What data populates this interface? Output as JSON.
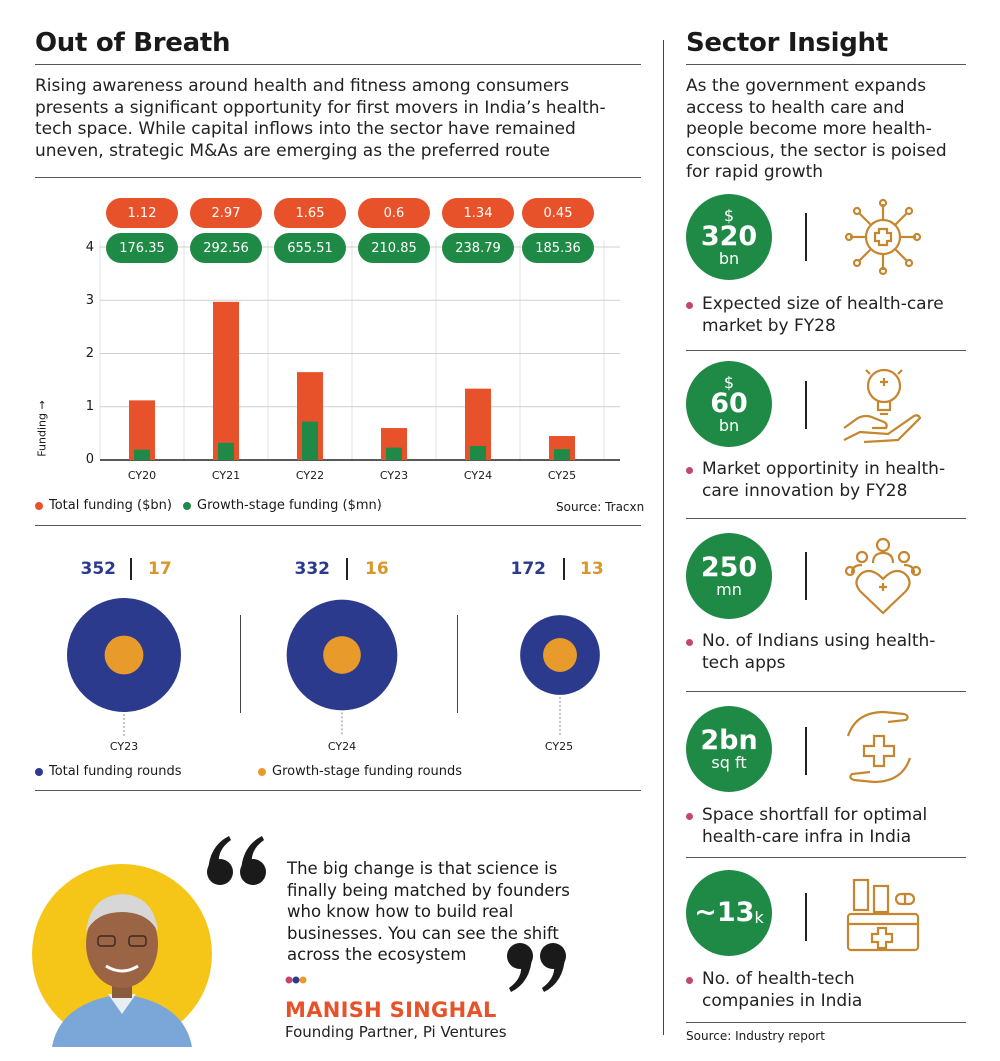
{
  "left": {
    "title": "Out of Breath",
    "intro": [
      "Rising awareness around health and fitness among consumers",
      "presents a significant opportunity for first movers in India’s health-",
      "tech space. While capital inflows into the sector have remained",
      "uneven, strategic M&As are emerging as the preferred route"
    ],
    "legend_total": "Total funding ($bn)",
    "legend_growth": "Growth-stage funding ($mn)",
    "source": "Source: Tracxn",
    "rounds_legend_total": "Total funding rounds",
    "rounds_legend_growth": "Growth-stage funding rounds"
  },
  "chart_data": [
    {
      "type": "bar",
      "categories": [
        "CY20",
        "CY21",
        "CY22",
        "CY23",
        "CY24",
        "CY25"
      ],
      "series": [
        {
          "name": "Total funding ($bn)",
          "values": [
            1.12,
            2.97,
            1.65,
            0.6,
            1.34,
            0.45
          ],
          "labels": [
            "1.12",
            "2.97",
            "1.65",
            "0.6",
            "1.34",
            "0.45"
          ],
          "color": "#e8522a"
        },
        {
          "name": "Growth-stage funding ($mn)",
          "values": [
            176.35,
            292.56,
            655.51,
            210.85,
            238.79,
            185.36
          ],
          "labels": [
            "176.35",
            "292.56",
            "655.51",
            "210.85",
            "238.79",
            "185.36"
          ],
          "color": "#1f8a46"
        }
      ],
      "ylabel": "Funding →",
      "yticks": [
        "0",
        "1",
        "2",
        "3",
        "4"
      ],
      "ylim": [
        0,
        4
      ],
      "grid": true
    },
    {
      "type": "pie",
      "categories": [
        "CY23",
        "CY24",
        "CY25"
      ],
      "series": [
        {
          "name": "Total funding rounds",
          "values": [
            352,
            332,
            172
          ],
          "color": "#2b3a8c"
        },
        {
          "name": "Growth-stage funding rounds",
          "values": [
            17,
            16,
            13
          ],
          "color": "#e89a2a"
        }
      ]
    }
  ],
  "right": {
    "title": "Sector Insight",
    "intro": [
      "As the government expands",
      "access to health care and",
      "people become more health-",
      "conscious, the sector is poised",
      "for rapid growth"
    ],
    "stats": [
      {
        "top": "$",
        "big": "320",
        "small": "bn",
        "desc": [
          "Expected size of health-care",
          "market by FY28"
        ],
        "icon": "medical-network-icon"
      },
      {
        "top": "$",
        "big": "60",
        "small": "bn",
        "desc": [
          "Market opportinity in health-",
          "care innovation by FY28"
        ],
        "icon": "idea-bulb-hand-icon"
      },
      {
        "top": "",
        "big": "250",
        "small": "mn",
        "desc": [
          "No. of Indians using health-",
          "tech apps"
        ],
        "icon": "people-heart-icon"
      },
      {
        "top": "",
        "big": "2bn",
        "small": "sq ft",
        "desc": [
          "Space shortfall for optimal",
          "health-care infra in India"
        ],
        "icon": "care-hands-icon"
      },
      {
        "top": "",
        "big": "~13",
        "small": "k",
        "desc": [
          "No. of health-tech",
          "companies in India"
        ],
        "icon": "medicine-kit-icon"
      }
    ],
    "source": "Source: Industry report"
  },
  "quote": {
    "text": [
      "The big change is that science is",
      "finally being matched by founders",
      "who know how to build real",
      "businesses. You can see the shift",
      "across the ecosystem"
    ],
    "name": "MANISH SINGHAL",
    "role": "Founding Partner, Pi Ventures"
  },
  "colors": {
    "red": "#e8522a",
    "green": "#1f8a46",
    "navy": "#2b3a8c",
    "orange": "#e89a2a",
    "yellow": "#f5c518",
    "icon": "#c5862f"
  }
}
